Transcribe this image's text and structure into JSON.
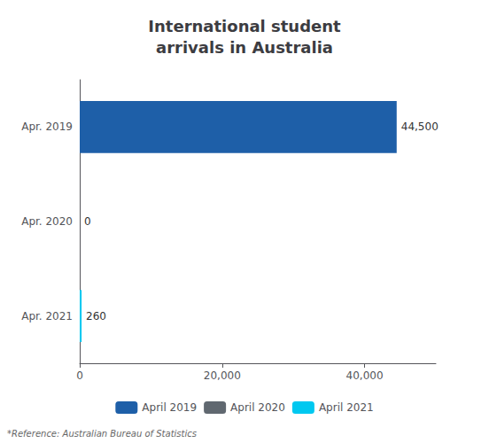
{
  "chart_data": {
    "type": "bar",
    "orientation": "horizontal",
    "title": "International student\narrivals in Australia",
    "categories": [
      "Apr. 2019",
      "Apr. 2020",
      "Apr. 2021"
    ],
    "series": [
      {
        "name": "April 2019",
        "color": "#1e5fa8",
        "values": [
          44500,
          null,
          null
        ],
        "value_labels": [
          "44,500",
          null,
          null
        ]
      },
      {
        "name": "April 2020",
        "color": "#606870",
        "values": [
          null,
          0,
          null
        ],
        "value_labels": [
          null,
          "0",
          null
        ]
      },
      {
        "name": "April 2021",
        "color": "#00c8f0",
        "values": [
          null,
          null,
          260
        ],
        "value_labels": [
          null,
          null,
          "260"
        ]
      }
    ],
    "xlim": [
      0,
      50000
    ],
    "xticks": [
      0,
      {
        "value": 20000,
        "label": "20,000"
      },
      {
        "value": 40000,
        "label": "40,000"
      }
    ],
    "data_labels": true,
    "grid": false,
    "legend": "bottom",
    "annotations": [
      "*Reference: Australian Bureau of Statistics"
    ]
  }
}
